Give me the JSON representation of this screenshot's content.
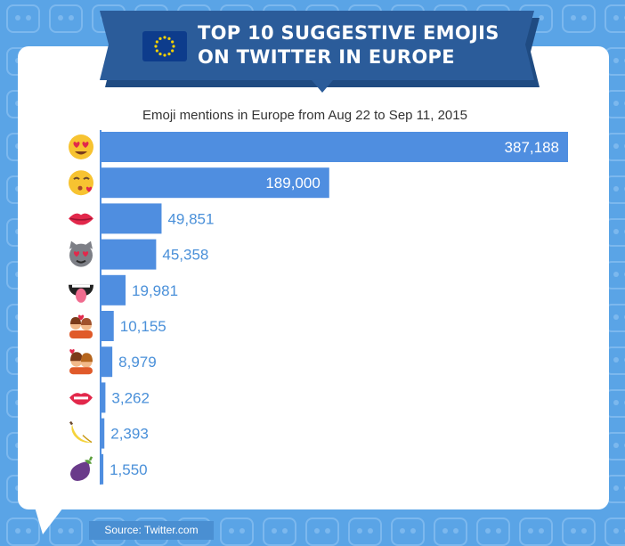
{
  "header": {
    "title_line1": "TOP 10 SUGGESTIVE EMOJIS",
    "title_line2": "ON TWITTER IN EUROPE",
    "subtitle": "Emoji mentions in Europe from Aug 22 to Sep 11, 2015"
  },
  "footer": {
    "source": "Source: Twitter.com"
  },
  "colors": {
    "background": "#5aa4e6",
    "banner": "#2b5c9a",
    "bar": "#4f8ee0",
    "value_outside": "#4a90d9",
    "flag": "#0d3c8c",
    "stars": "#f5d100"
  },
  "chart_data": {
    "type": "bar",
    "orientation": "horizontal",
    "title": "Emoji mentions in Europe from Aug 22 to Sep 11, 2015",
    "categories": [
      "smiling-face-heart-eyes-icon",
      "face-throwing-kiss-icon",
      "kiss-mark-icon",
      "cat-heart-eyes-icon",
      "tongue-mouth-icon",
      "couple-with-heart-icon",
      "kiss-couple-icon",
      "mouth-lips-icon",
      "banana-icon",
      "eggplant-icon"
    ],
    "values": [
      387188,
      189000,
      49851,
      45358,
      19981,
      10155,
      8979,
      3262,
      2393,
      1550
    ],
    "labels": [
      "387,188",
      "189,000",
      "49,851",
      "45,358",
      "19,981",
      "10,155",
      "8,979",
      "3,262",
      "2,393",
      "1,550"
    ],
    "xlim": [
      0,
      387188
    ],
    "grid": false,
    "legend": "none"
  }
}
